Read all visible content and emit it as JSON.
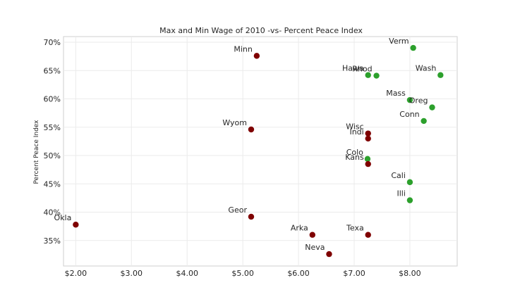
{
  "chart_data": {
    "type": "scatter",
    "title": "Max and Min Wage of 2010 -vs- Percent Peace Index",
    "xlabel": "",
    "ylabel": "Percent Peace Index",
    "xlim": [
      1.78,
      8.85
    ],
    "ylim": [
      30.5,
      71.0
    ],
    "x_ticks": [
      2,
      3,
      4,
      5,
      6,
      7,
      8
    ],
    "x_tick_labels": [
      "$2.00",
      "$3.00",
      "$4.00",
      "$5.00",
      "$6.00",
      "$7.00",
      "$8.00"
    ],
    "y_ticks": [
      35,
      40,
      45,
      50,
      55,
      60,
      65,
      70
    ],
    "y_tick_labels": [
      "35%",
      "40%",
      "45%",
      "50%",
      "55%",
      "60%",
      "65%",
      "70%"
    ],
    "grid": true,
    "colors": {
      "max": "#2ca02c",
      "min": "#7f0000"
    },
    "series": [
      {
        "key": "max",
        "points": [
          {
            "label": "Verm",
            "x": 8.06,
            "y": 69.0
          },
          {
            "label": "Hawa",
            "x": 7.25,
            "y": 64.2
          },
          {
            "label": "Rhod",
            "x": 7.4,
            "y": 64.1
          },
          {
            "label": "Wash",
            "x": 8.55,
            "y": 64.2
          },
          {
            "label": "Mass",
            "x": 8.0,
            "y": 59.8
          },
          {
            "label": "Oreg",
            "x": 8.4,
            "y": 58.5
          },
          {
            "label": "Conn",
            "x": 8.25,
            "y": 56.1
          },
          {
            "label": "Colo",
            "x": 7.24,
            "y": 49.4
          },
          {
            "label": "Cali",
            "x": 8.0,
            "y": 45.3
          },
          {
            "label": "Illi",
            "x": 8.0,
            "y": 42.1
          }
        ]
      },
      {
        "key": "min",
        "points": [
          {
            "label": "Minn",
            "x": 5.25,
            "y": 67.6
          },
          {
            "label": "Wyom",
            "x": 5.15,
            "y": 54.6
          },
          {
            "label": "Wisc",
            "x": 7.25,
            "y": 53.9
          },
          {
            "label": "Indi",
            "x": 7.25,
            "y": 53.0
          },
          {
            "label": "Kans",
            "x": 7.25,
            "y": 48.5
          },
          {
            "label": "Okla",
            "x": 2.0,
            "y": 37.8
          },
          {
            "label": "Geor",
            "x": 5.15,
            "y": 39.2
          },
          {
            "label": "Arka",
            "x": 6.25,
            "y": 36.0
          },
          {
            "label": "Texa",
            "x": 7.25,
            "y": 36.0
          },
          {
            "label": "Neva",
            "x": 6.55,
            "y": 32.6
          }
        ]
      }
    ]
  }
}
